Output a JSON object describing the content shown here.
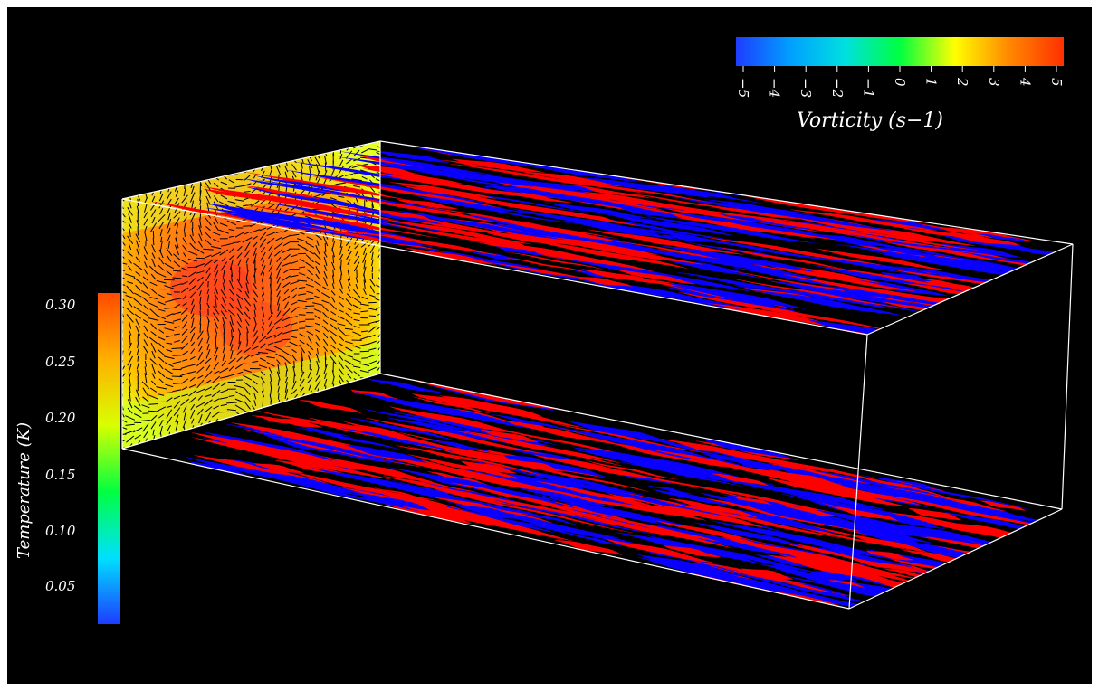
{
  "vorticity_colorbar": {
    "title": "Vorticity  (s−1)",
    "ticks": [
      "−5",
      "−4",
      "−3",
      "−2",
      "−1",
      "0",
      "1",
      "2",
      "3",
      "4",
      "5"
    ],
    "gradient": [
      "#1e3cff",
      "#00a0ff",
      "#00e0e0",
      "#00ff40",
      "#ffff00",
      "#ff8800",
      "#ff3000"
    ]
  },
  "temperature_colorbar": {
    "title": "Temperature (K)",
    "ticks": [
      "0.30",
      "0.25",
      "0.20",
      "0.15",
      "0.10",
      "0.05"
    ],
    "gradient": [
      "#ff4a00",
      "#ffb000",
      "#d8ff00",
      "#00ff40",
      "#00e0ff",
      "#1e3cff"
    ]
  },
  "colors": {
    "positive_vorticity": "#ff0000",
    "negative_vorticity": "#0a00ff",
    "box_outline": "#ffffff",
    "background": "#000000"
  }
}
